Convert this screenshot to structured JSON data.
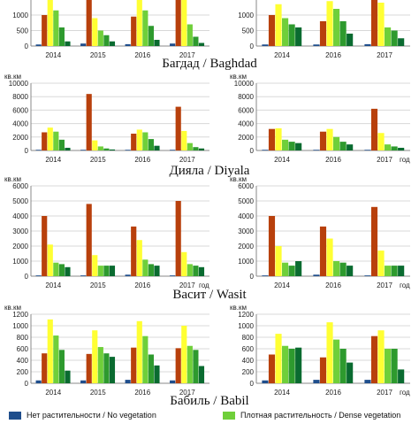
{
  "regions": [
    {
      "name": "Багдад / Baghdad"
    },
    {
      "name": "Дияла / Diyala"
    },
    {
      "name": "Васит / Wasit"
    },
    {
      "name": "Бабиль / Babil"
    }
  ],
  "legend": [
    {
      "label": "Нет растительности / No vegetation",
      "color": "#1f4e8c"
    },
    {
      "label": "Плотная растительность / Dense vegetation",
      "color": "#6fcf3a"
    }
  ],
  "chart_data": [
    {
      "type": "bar",
      "unit": "",
      "xunit": "",
      "categories": [
        "2014",
        "2015",
        "2016",
        "2017"
      ],
      "ylim": [
        0,
        2000
      ],
      "yticks": [
        0,
        500,
        1000,
        1500
      ],
      "series": [
        {
          "color": "#1f4e8c",
          "values": [
            50,
            80,
            60,
            80
          ]
        },
        {
          "color": "#b8400c",
          "values": [
            1000,
            1900,
            950,
            1950
          ]
        },
        {
          "color": "#ffff33",
          "values": [
            1650,
            900,
            1500,
            1850
          ]
        },
        {
          "color": "#6fcf3a",
          "values": [
            1150,
            500,
            1150,
            700
          ]
        },
        {
          "color": "#2e9a2e",
          "values": [
            600,
            350,
            650,
            300
          ]
        },
        {
          "color": "#0a6b30",
          "values": [
            150,
            150,
            200,
            100
          ]
        }
      ]
    },
    {
      "type": "bar",
      "unit": "",
      "xunit": "",
      "categories": [
        "2014",
        "2016",
        "2017"
      ],
      "ylim": [
        0,
        2000
      ],
      "yticks": [
        0,
        500,
        1000,
        1500
      ],
      "series": [
        {
          "color": "#1f4e8c",
          "values": [
            50,
            50,
            60
          ]
        },
        {
          "color": "#b8400c",
          "values": [
            1000,
            800,
            1950
          ]
        },
        {
          "color": "#ffff33",
          "values": [
            1350,
            1450,
            1400
          ]
        },
        {
          "color": "#6fcf3a",
          "values": [
            900,
            1200,
            600
          ]
        },
        {
          "color": "#2e9a2e",
          "values": [
            700,
            800,
            500
          ]
        },
        {
          "color": "#0a6b30",
          "values": [
            600,
            400,
            250
          ]
        }
      ]
    },
    {
      "type": "bar",
      "unit": "кв.км",
      "xunit": "",
      "categories": [
        "2014",
        "2015",
        "2016",
        "2017"
      ],
      "ylim": [
        0,
        10000
      ],
      "yticks": [
        0,
        2000,
        4000,
        6000,
        8000,
        10000
      ],
      "series": [
        {
          "color": "#1f4e8c",
          "values": [
            100,
            100,
            100,
            100
          ]
        },
        {
          "color": "#b8400c",
          "values": [
            2700,
            8400,
            2500,
            6500
          ]
        },
        {
          "color": "#ffff33",
          "values": [
            3400,
            1500,
            3100,
            2900
          ]
        },
        {
          "color": "#6fcf3a",
          "values": [
            2800,
            600,
            2700,
            1100
          ]
        },
        {
          "color": "#2e9a2e",
          "values": [
            1600,
            300,
            1700,
            500
          ]
        },
        {
          "color": "#0a6b30",
          "values": [
            400,
            150,
            700,
            300
          ]
        }
      ]
    },
    {
      "type": "bar",
      "unit": "кв.км",
      "xunit": "год",
      "categories": [
        "2014",
        "2016",
        "2017"
      ],
      "ylim": [
        0,
        10000
      ],
      "yticks": [
        0,
        2000,
        4000,
        6000,
        8000,
        10000
      ],
      "series": [
        {
          "color": "#1f4e8c",
          "values": [
            100,
            100,
            100
          ]
        },
        {
          "color": "#b8400c",
          "values": [
            3200,
            2800,
            6200
          ]
        },
        {
          "color": "#ffff33",
          "values": [
            3300,
            3200,
            2600
          ]
        },
        {
          "color": "#6fcf3a",
          "values": [
            1600,
            2000,
            900
          ]
        },
        {
          "color": "#2e9a2e",
          "values": [
            1300,
            1300,
            600
          ]
        },
        {
          "color": "#0a6b30",
          "values": [
            1100,
            900,
            400
          ]
        }
      ]
    },
    {
      "type": "bar",
      "unit": "кв.км",
      "xunit": "год",
      "categories": [
        "2014",
        "2015",
        "2016",
        "2017"
      ],
      "ylim": [
        0,
        6000
      ],
      "yticks": [
        0,
        1000,
        2000,
        3000,
        4000,
        5000,
        6000
      ],
      "series": [
        {
          "color": "#1f4e8c",
          "values": [
            50,
            50,
            100,
            50
          ]
        },
        {
          "color": "#b8400c",
          "values": [
            4000,
            4800,
            3300,
            5000
          ]
        },
        {
          "color": "#ffff33",
          "values": [
            2100,
            1400,
            2400,
            1600
          ]
        },
        {
          "color": "#6fcf3a",
          "values": [
            900,
            700,
            1100,
            800
          ]
        },
        {
          "color": "#2e9a2e",
          "values": [
            800,
            700,
            800,
            700
          ]
        },
        {
          "color": "#0a6b30",
          "values": [
            600,
            700,
            700,
            600
          ]
        }
      ]
    },
    {
      "type": "bar",
      "unit": "кв.км",
      "xunit": "год",
      "categories": [
        "2014",
        "2016",
        "2017"
      ],
      "ylim": [
        0,
        6000
      ],
      "yticks": [
        0,
        1000,
        2000,
        3000,
        4000,
        5000,
        6000
      ],
      "series": [
        {
          "color": "#1f4e8c",
          "values": [
            50,
            100,
            50
          ]
        },
        {
          "color": "#b8400c",
          "values": [
            4000,
            3300,
            4600
          ]
        },
        {
          "color": "#ffff33",
          "values": [
            2000,
            2500,
            1700
          ]
        },
        {
          "color": "#6fcf3a",
          "values": [
            900,
            1000,
            700
          ]
        },
        {
          "color": "#2e9a2e",
          "values": [
            700,
            900,
            700
          ]
        },
        {
          "color": "#0a6b30",
          "values": [
            1000,
            700,
            700
          ]
        }
      ]
    },
    {
      "type": "bar",
      "unit": "кв.км",
      "xunit": "",
      "categories": [
        "2014",
        "2015",
        "2016",
        "2017"
      ],
      "ylim": [
        0,
        1200
      ],
      "yticks": [
        0,
        200,
        400,
        600,
        800,
        1000,
        1200
      ],
      "series": [
        {
          "color": "#1f4e8c",
          "values": [
            50,
            50,
            60,
            50
          ]
        },
        {
          "color": "#b8400c",
          "values": [
            520,
            510,
            620,
            610
          ]
        },
        {
          "color": "#ffff33",
          "values": [
            1110,
            920,
            1080,
            1000
          ]
        },
        {
          "color": "#6fcf3a",
          "values": [
            830,
            630,
            820,
            650
          ]
        },
        {
          "color": "#2e9a2e",
          "values": [
            580,
            520,
            500,
            580
          ]
        },
        {
          "color": "#0a6b30",
          "values": [
            220,
            460,
            310,
            300
          ]
        }
      ]
    },
    {
      "type": "bar",
      "unit": "кв.км",
      "xunit": "год",
      "categories": [
        "2014",
        "2016",
        "2017"
      ],
      "ylim": [
        0,
        1200
      ],
      "yticks": [
        0,
        200,
        400,
        600,
        800,
        1000,
        1200
      ],
      "series": [
        {
          "color": "#1f4e8c",
          "values": [
            50,
            60,
            60
          ]
        },
        {
          "color": "#b8400c",
          "values": [
            500,
            450,
            820
          ]
        },
        {
          "color": "#ffff33",
          "values": [
            860,
            1060,
            920
          ]
        },
        {
          "color": "#6fcf3a",
          "values": [
            650,
            760,
            600
          ]
        },
        {
          "color": "#2e9a2e",
          "values": [
            600,
            600,
            600
          ]
        },
        {
          "color": "#0a6b30",
          "values": [
            620,
            360,
            240
          ]
        }
      ]
    }
  ]
}
